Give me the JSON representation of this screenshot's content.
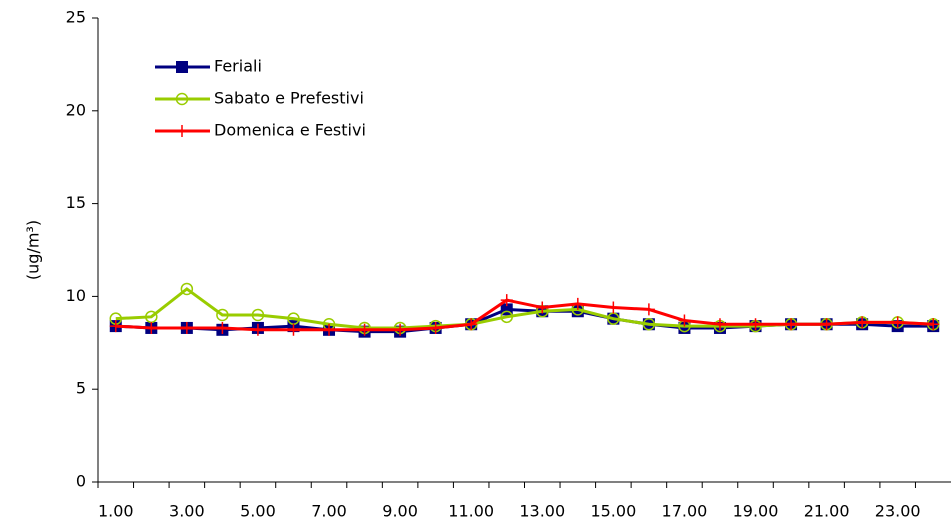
{
  "chart_data": {
    "type": "line",
    "y_label": "(ug/m³)",
    "categories": [
      "1.00",
      null,
      "3.00",
      null,
      "5.00",
      null,
      "7.00",
      null,
      "9.00",
      null,
      "11.00",
      null,
      "13.00",
      null,
      "15.00",
      null,
      "17.00",
      null,
      "19.00",
      null,
      "21.00",
      null,
      "23.00",
      null
    ],
    "series": [
      {
        "name": "Feriali",
        "color": "#000080",
        "marker": "square",
        "values": [
          8.4,
          8.3,
          8.3,
          8.2,
          8.3,
          8.4,
          8.2,
          8.1,
          8.1,
          8.3,
          8.5,
          9.3,
          9.2,
          9.2,
          8.8,
          8.5,
          8.3,
          8.3,
          8.4,
          8.5,
          8.5,
          8.5,
          8.4,
          8.4
        ]
      },
      {
        "name": "Sabato e Prefestivi",
        "color": "#99cc00",
        "marker": "circle",
        "values": [
          8.8,
          8.9,
          10.4,
          9.0,
          9.0,
          8.8,
          8.5,
          8.3,
          8.3,
          8.4,
          8.5,
          8.9,
          9.2,
          9.3,
          8.8,
          8.5,
          8.4,
          8.4,
          8.4,
          8.5,
          8.5,
          8.6,
          8.6,
          8.5
        ]
      },
      {
        "name": "Domenica e Festivi",
        "color": "#ff0000",
        "marker": "plus",
        "values": [
          8.4,
          8.3,
          8.3,
          8.3,
          8.2,
          8.2,
          8.2,
          8.2,
          8.2,
          8.3,
          8.5,
          9.8,
          9.4,
          9.6,
          9.4,
          9.3,
          8.7,
          8.5,
          8.5,
          8.5,
          8.5,
          8.6,
          8.6,
          8.5
        ]
      }
    ],
    "ylim": [
      0,
      25
    ],
    "yticks": [
      0,
      5,
      10,
      15,
      20,
      25
    ],
    "grid": false,
    "legend": "upper-left"
  }
}
